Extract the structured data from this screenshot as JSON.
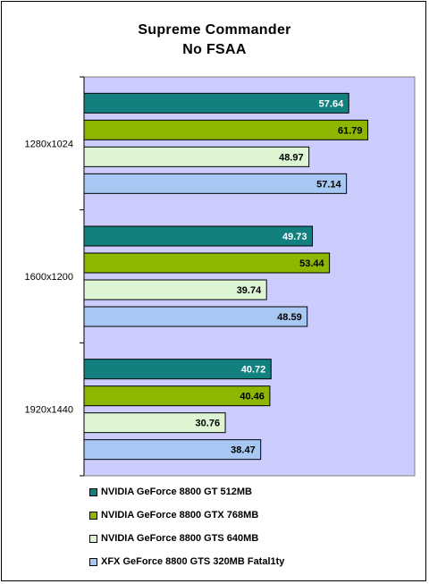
{
  "chart_data": {
    "type": "bar",
    "orientation": "horizontal",
    "title": "Supreme Commander",
    "subtitle": "No FSAA",
    "categories": [
      "1280x1024",
      "1600x1200",
      "1920x1440"
    ],
    "series": [
      {
        "name": "NVIDIA GeForce 8800 GT 512MB",
        "color": "#138080",
        "label_color": "#ffffff",
        "values": [
          57.64,
          49.73,
          40.72
        ]
      },
      {
        "name": "NVIDIA GeForce 8800 GTX 768MB",
        "color": "#8DB600",
        "label_color": "#000000",
        "values": [
          61.79,
          53.44,
          40.46
        ]
      },
      {
        "name": "NVIDIA GeForce 8800 GTS 640MB",
        "color": "#DDF5D2",
        "label_color": "#000000",
        "values": [
          48.97,
          39.74,
          30.76
        ]
      },
      {
        "name": "XFX GeForce 8800 GTS 320MB Fatal1ty",
        "color": "#A7C8F2",
        "label_color": "#000000",
        "values": [
          57.14,
          48.59,
          38.47
        ]
      }
    ],
    "xlim": [
      0,
      72
    ],
    "plot_background": "#CCCCFF",
    "legend_position": "bottom",
    "grid": false
  }
}
